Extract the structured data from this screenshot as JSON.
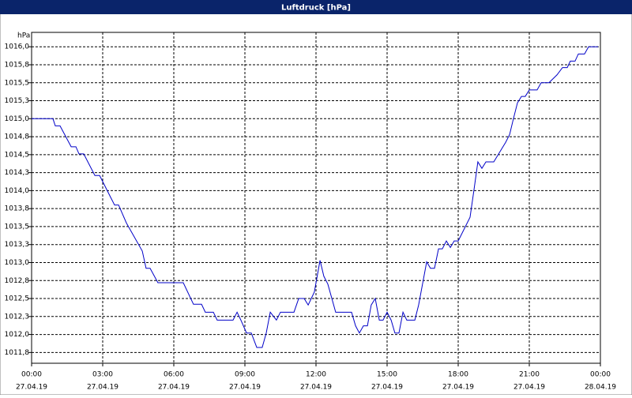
{
  "chart_data": {
    "type": "line",
    "title": "Luftdruck [hPa]",
    "y_label": "hPa",
    "x": [
      0,
      0.9,
      1.0,
      1.2,
      1.67,
      1.87,
      2.0,
      2.2,
      2.67,
      2.87,
      3.33,
      3.5,
      3.67,
      4.0,
      4.67,
      4.83,
      5.0,
      5.33,
      6.4,
      6.83,
      7.17,
      7.33,
      7.67,
      7.83,
      8.5,
      8.67,
      8.83,
      9.07,
      9.27,
      9.5,
      9.73,
      9.9,
      10.07,
      10.33,
      10.5,
      11.07,
      11.27,
      11.5,
      11.67,
      11.93,
      12.17,
      12.33,
      12.5,
      12.83,
      13.5,
      13.67,
      13.83,
      14.0,
      14.17,
      14.33,
      14.5,
      14.67,
      14.83,
      15.0,
      15.17,
      15.33,
      15.5,
      15.67,
      15.83,
      16.17,
      16.33,
      16.67,
      16.83,
      17.0,
      17.17,
      17.33,
      17.5,
      17.67,
      17.83,
      18.0,
      18.5,
      18.67,
      18.83,
      19.0,
      19.17,
      19.5,
      20.0,
      20.17,
      20.33,
      20.5,
      20.67,
      20.83,
      21.0,
      21.33,
      21.5,
      21.83,
      22.17,
      22.4,
      22.6,
      22.73,
      22.93,
      23.07,
      23.33,
      23.5,
      23.9
    ],
    "series": [
      {
        "name": "Luftdruck",
        "color": "#0000c8",
        "values": [
          1015.0,
          1015.0,
          1014.9,
          1014.9,
          1014.61,
          1014.61,
          1014.51,
          1014.51,
          1014.21,
          1014.21,
          1013.91,
          1013.8,
          1013.8,
          1013.55,
          1013.16,
          1012.92,
          1012.92,
          1012.72,
          1012.72,
          1012.42,
          1012.42,
          1012.31,
          1012.31,
          1012.2,
          1012.2,
          1012.31,
          1012.2,
          1012.02,
          1012.02,
          1011.82,
          1011.82,
          1012.02,
          1012.31,
          1012.2,
          1012.31,
          1012.31,
          1012.5,
          1012.5,
          1012.41,
          1012.59,
          1013.03,
          1012.81,
          1012.7,
          1012.31,
          1012.31,
          1012.12,
          1012.02,
          1012.12,
          1012.12,
          1012.41,
          1012.5,
          1012.2,
          1012.2,
          1012.31,
          1012.2,
          1012.02,
          1012.02,
          1012.31,
          1012.2,
          1012.2,
          1012.41,
          1013.01,
          1012.92,
          1012.92,
          1013.19,
          1013.19,
          1013.3,
          1013.21,
          1013.3,
          1013.3,
          1013.63,
          1014.02,
          1014.4,
          1014.31,
          1014.4,
          1014.4,
          1014.67,
          1014.78,
          1015.0,
          1015.22,
          1015.31,
          1015.31,
          1015.4,
          1015.4,
          1015.5,
          1015.5,
          1015.61,
          1015.71,
          1015.71,
          1015.8,
          1015.8,
          1015.9,
          1015.9,
          1016.0,
          1016.0
        ]
      }
    ],
    "xlim": [
      0,
      24
    ],
    "xticks": [
      {
        "value": 0,
        "label": "00:00"
      },
      {
        "value": 3,
        "label": "03:00"
      },
      {
        "value": 6,
        "label": "06:00"
      },
      {
        "value": 9,
        "label": "09:00"
      },
      {
        "value": 12,
        "label": "12:00"
      },
      {
        "value": 15,
        "label": "15:00"
      },
      {
        "value": 18,
        "label": "18:00"
      },
      {
        "value": 21,
        "label": "21:00"
      },
      {
        "value": 24,
        "label": "00:00"
      }
    ],
    "xtick_dates": [
      "27.04.19",
      "27.04.19",
      "27.04.19",
      "27.04.19",
      "27.04.19",
      "27.04.19",
      "27.04.19",
      "27.04.19",
      "28.04.19"
    ],
    "ylim": [
      1011.6,
      1016.2
    ],
    "yticks": [
      {
        "value": 1011.75,
        "label": "1011,8"
      },
      {
        "value": 1012,
        "label": "1012,0"
      },
      {
        "value": 1012.25,
        "label": "1012,3"
      },
      {
        "value": 1012.5,
        "label": "1012,5"
      },
      {
        "value": 1012.75,
        "label": "1012,8"
      },
      {
        "value": 1013,
        "label": "1013,0"
      },
      {
        "value": 1013.25,
        "label": "1013,3"
      },
      {
        "value": 1013.5,
        "label": "1013,5"
      },
      {
        "value": 1013.75,
        "label": "1013,8"
      },
      {
        "value": 1014,
        "label": "1014,0"
      },
      {
        "value": 1014.25,
        "label": "1014,3"
      },
      {
        "value": 1014.5,
        "label": "1014,5"
      },
      {
        "value": 1014.75,
        "label": "1014,8"
      },
      {
        "value": 1015,
        "label": "1015,0"
      },
      {
        "value": 1015.25,
        "label": "1015,3"
      },
      {
        "value": 1015.5,
        "label": "1015,5"
      },
      {
        "value": 1015.75,
        "label": "1015,8"
      },
      {
        "value": 1016,
        "label": "1016,0"
      }
    ],
    "grid": true
  }
}
